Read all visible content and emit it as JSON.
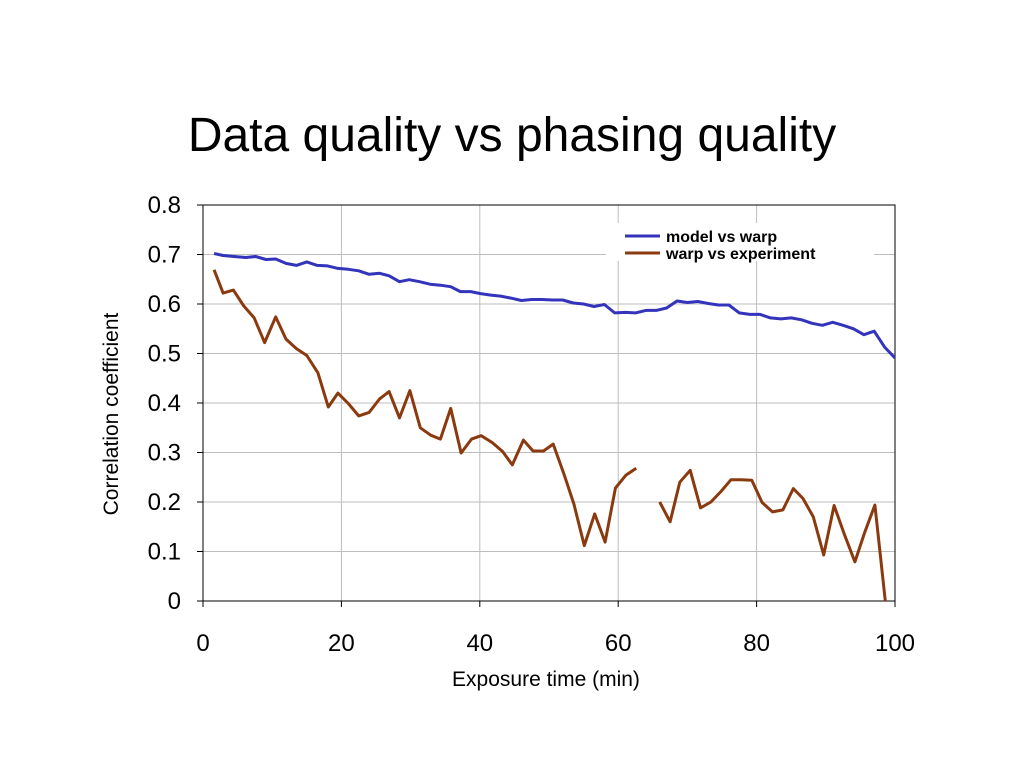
{
  "slide": {
    "title": "Data quality vs phasing quality"
  },
  "chart_data": {
    "type": "line",
    "xlabel": "Exposure time (min)",
    "ylabel": "Correlation coefficient",
    "xlim": [
      0,
      100
    ],
    "ylim": [
      0,
      0.8
    ],
    "xticks": [
      0,
      20,
      40,
      60,
      80,
      100
    ],
    "yticks": [
      0,
      0.1,
      0.2,
      0.3,
      0.4,
      0.5,
      0.6,
      0.7,
      0.8
    ],
    "grid": true,
    "legend": "top-right",
    "series": [
      {
        "name": "model vs warp",
        "color": "#3333bb",
        "segments": [
          [
            [
              1.6,
              0.702
            ],
            [
              2.9,
              0.698
            ],
            [
              4.5,
              0.696
            ],
            [
              6.2,
              0.694
            ],
            [
              7.6,
              0.696
            ],
            [
              9.1,
              0.69
            ],
            [
              10.5,
              0.691
            ],
            [
              12.0,
              0.682
            ],
            [
              13.5,
              0.678
            ],
            [
              15.0,
              0.685
            ],
            [
              16.5,
              0.678
            ],
            [
              18.0,
              0.677
            ],
            [
              19.5,
              0.672
            ],
            [
              21.0,
              0.67
            ],
            [
              22.5,
              0.667
            ],
            [
              24.0,
              0.66
            ],
            [
              25.5,
              0.662
            ],
            [
              26.9,
              0.657
            ],
            [
              28.4,
              0.645
            ],
            [
              29.8,
              0.649
            ],
            [
              31.3,
              0.645
            ],
            [
              32.8,
              0.64
            ],
            [
              34.3,
              0.638
            ],
            [
              35.8,
              0.635
            ],
            [
              37.2,
              0.625
            ],
            [
              38.7,
              0.625
            ],
            [
              40.1,
              0.621
            ],
            [
              41.6,
              0.618
            ],
            [
              43.0,
              0.616
            ],
            [
              44.5,
              0.612
            ],
            [
              46.0,
              0.607
            ],
            [
              47.5,
              0.609
            ],
            [
              49.0,
              0.609
            ],
            [
              50.5,
              0.608
            ],
            [
              52.0,
              0.608
            ],
            [
              53.5,
              0.602
            ],
            [
              55.0,
              0.6
            ],
            [
              56.5,
              0.595
            ],
            [
              58.0,
              0.599
            ],
            [
              59.5,
              0.582
            ],
            [
              61.0,
              0.583
            ],
            [
              62.5,
              0.582
            ],
            [
              64.0,
              0.587
            ],
            [
              65.5,
              0.587
            ],
            [
              67.0,
              0.592
            ],
            [
              68.5,
              0.606
            ],
            [
              70.0,
              0.603
            ],
            [
              71.5,
              0.605
            ],
            [
              73.0,
              0.601
            ],
            [
              74.5,
              0.598
            ],
            [
              76.0,
              0.598
            ],
            [
              77.5,
              0.582
            ],
            [
              79.0,
              0.579
            ],
            [
              80.5,
              0.579
            ],
            [
              82.0,
              0.572
            ],
            [
              83.5,
              0.57
            ],
            [
              85.0,
              0.572
            ],
            [
              86.5,
              0.568
            ],
            [
              88.0,
              0.561
            ],
            [
              89.5,
              0.557
            ],
            [
              91.0,
              0.563
            ],
            [
              92.5,
              0.557
            ],
            [
              94.0,
              0.55
            ],
            [
              95.5,
              0.538
            ],
            [
              97.0,
              0.545
            ],
            [
              98.5,
              0.513
            ],
            [
              100.0,
              0.491
            ]
          ]
        ]
      },
      {
        "name": "warp vs experiment",
        "color": "#8b3a0f",
        "segments": [
          [
            [
              1.6,
              0.669
            ],
            [
              2.9,
              0.622
            ],
            [
              4.4,
              0.628
            ],
            [
              5.9,
              0.596
            ],
            [
              7.4,
              0.572
            ],
            [
              8.9,
              0.522
            ],
            [
              10.5,
              0.574
            ],
            [
              12.0,
              0.529
            ],
            [
              13.5,
              0.51
            ],
            [
              15.0,
              0.496
            ],
            [
              16.6,
              0.461
            ],
            [
              18.1,
              0.392
            ],
            [
              19.5,
              0.42
            ],
            [
              21.0,
              0.399
            ],
            [
              22.5,
              0.374
            ],
            [
              24.0,
              0.381
            ],
            [
              25.5,
              0.408
            ],
            [
              26.9,
              0.423
            ],
            [
              28.4,
              0.37
            ],
            [
              29.9,
              0.425
            ],
            [
              31.4,
              0.35
            ],
            [
              32.9,
              0.335
            ],
            [
              34.3,
              0.327
            ],
            [
              35.8,
              0.389
            ],
            [
              37.3,
              0.299
            ],
            [
              38.8,
              0.327
            ],
            [
              40.2,
              0.334
            ],
            [
              41.8,
              0.32
            ],
            [
              43.3,
              0.302
            ],
            [
              44.7,
              0.275
            ],
            [
              46.3,
              0.325
            ],
            [
              47.7,
              0.303
            ],
            [
              49.2,
              0.303
            ],
            [
              50.6,
              0.317
            ],
            [
              52.2,
              0.255
            ],
            [
              53.6,
              0.196
            ],
            [
              55.1,
              0.112
            ],
            [
              56.6,
              0.176
            ],
            [
              58.1,
              0.119
            ],
            [
              59.6,
              0.228
            ],
            [
              61.1,
              0.254
            ],
            [
              62.6,
              0.268
            ]
          ],
          [
            [
              66.0,
              0.2
            ],
            [
              67.5,
              0.16
            ],
            [
              68.9,
              0.24
            ],
            [
              70.4,
              0.264
            ],
            [
              71.9,
              0.188
            ],
            [
              73.4,
              0.2
            ],
            [
              74.9,
              0.222
            ],
            [
              76.3,
              0.245
            ],
            [
              77.8,
              0.245
            ],
            [
              79.3,
              0.244
            ],
            [
              80.8,
              0.199
            ],
            [
              82.3,
              0.18
            ],
            [
              83.8,
              0.184
            ],
            [
              85.3,
              0.227
            ],
            [
              86.7,
              0.207
            ],
            [
              88.2,
              0.17
            ],
            [
              89.7,
              0.093
            ],
            [
              91.2,
              0.193
            ],
            [
              92.7,
              0.134
            ],
            [
              94.2,
              0.079
            ],
            [
              95.6,
              0.138
            ],
            [
              97.1,
              0.194
            ],
            [
              98.6,
              0.0
            ]
          ]
        ]
      }
    ]
  }
}
